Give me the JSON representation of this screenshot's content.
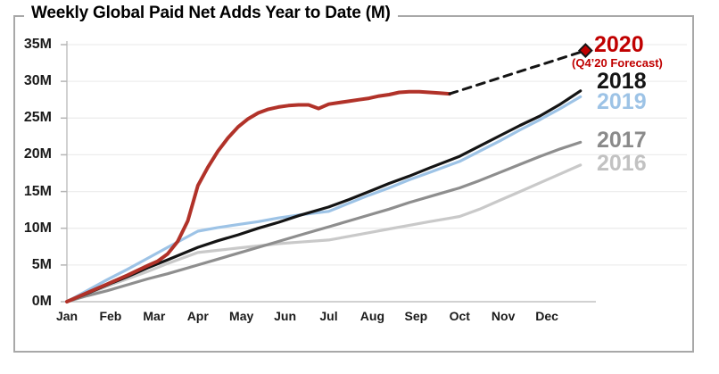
{
  "figure": {
    "title": "Weekly Global Paid Net Adds Year to Date (M)",
    "border_color": "#A8A8A8",
    "background": "#FFFFFF"
  },
  "chart_data": {
    "type": "line",
    "title": "Weekly Global Paid Net Adds Year to Date (M)",
    "x_unit": "weeks of the year (cumulative year-to-date, Jan through Dec)",
    "x_tick_labels": [
      "Jan",
      "Feb",
      "Mar",
      "Apr",
      "May",
      "Jun",
      "Jul",
      "Aug",
      "Sep",
      "Oct",
      "Nov",
      "Dec"
    ],
    "y_ticks": [
      0,
      5,
      10,
      15,
      20,
      25,
      30,
      35
    ],
    "y_tick_labels": [
      "0M",
      "5M",
      "10M",
      "15M",
      "20M",
      "25M",
      "30M",
      "35M"
    ],
    "ylim": [
      0,
      35
    ],
    "xlim_weeks": [
      0,
      52
    ],
    "grid": "horizontal-light",
    "legend_position": "right-end-of-line-labels",
    "series": [
      {
        "name": "2016",
        "style": "solid",
        "color": "#C9C9C9",
        "width": 3.2,
        "points": [
          [
            0,
            0
          ],
          [
            2,
            1.0
          ],
          [
            4,
            2.1
          ],
          [
            6,
            3.1
          ],
          [
            8,
            4.1
          ],
          [
            10,
            5.2
          ],
          [
            11,
            5.7
          ],
          [
            13,
            6.7
          ],
          [
            15,
            7.0
          ],
          [
            17,
            7.3
          ],
          [
            19,
            7.6
          ],
          [
            21,
            7.9
          ],
          [
            23,
            8.1
          ],
          [
            26,
            8.4
          ],
          [
            28,
            8.9
          ],
          [
            30,
            9.4
          ],
          [
            32,
            9.9
          ],
          [
            34,
            10.4
          ],
          [
            36,
            10.9
          ],
          [
            39,
            11.6
          ],
          [
            41,
            12.6
          ],
          [
            43,
            13.8
          ],
          [
            45,
            15.0
          ],
          [
            47,
            16.2
          ],
          [
            49,
            17.4
          ],
          [
            51,
            18.6
          ]
        ]
      },
      {
        "name": "2017",
        "style": "solid",
        "color": "#8E8E8E",
        "width": 3.2,
        "points": [
          [
            0,
            0
          ],
          [
            2,
            0.8
          ],
          [
            4,
            1.5
          ],
          [
            6,
            2.3
          ],
          [
            8,
            3.1
          ],
          [
            10,
            3.8
          ],
          [
            13,
            5.0
          ],
          [
            15,
            5.8
          ],
          [
            17,
            6.6
          ],
          [
            19,
            7.4
          ],
          [
            21,
            8.2
          ],
          [
            23,
            9.0
          ],
          [
            26,
            10.2
          ],
          [
            28,
            11.0
          ],
          [
            30,
            11.8
          ],
          [
            32,
            12.6
          ],
          [
            34,
            13.5
          ],
          [
            36,
            14.3
          ],
          [
            39,
            15.5
          ],
          [
            41,
            16.5
          ],
          [
            43,
            17.6
          ],
          [
            45,
            18.7
          ],
          [
            47,
            19.8
          ],
          [
            49,
            20.8
          ],
          [
            51,
            21.7
          ]
        ]
      },
      {
        "name": "2019",
        "style": "solid",
        "color": "#9DC3E6",
        "width": 3.2,
        "points": [
          [
            0,
            0
          ],
          [
            2,
            1.5
          ],
          [
            4,
            3.0
          ],
          [
            6,
            4.4
          ],
          [
            8,
            5.9
          ],
          [
            10,
            7.4
          ],
          [
            13,
            9.6
          ],
          [
            15,
            10.1
          ],
          [
            17,
            10.5
          ],
          [
            19,
            10.9
          ],
          [
            21,
            11.4
          ],
          [
            23,
            11.8
          ],
          [
            26,
            12.3
          ],
          [
            28,
            13.4
          ],
          [
            30,
            14.5
          ],
          [
            32,
            15.5
          ],
          [
            34,
            16.6
          ],
          [
            36,
            17.6
          ],
          [
            39,
            19.1
          ],
          [
            41,
            20.5
          ],
          [
            43,
            21.9
          ],
          [
            45,
            23.4
          ],
          [
            47,
            24.8
          ],
          [
            49,
            26.3
          ],
          [
            51,
            27.9
          ]
        ]
      },
      {
        "name": "2018",
        "style": "solid",
        "color": "#141414",
        "width": 3.2,
        "points": [
          [
            0,
            0
          ],
          [
            2,
            1.1
          ],
          [
            4,
            2.3
          ],
          [
            6,
            3.4
          ],
          [
            8,
            4.6
          ],
          [
            10,
            5.7
          ],
          [
            13,
            7.4
          ],
          [
            15,
            8.3
          ],
          [
            17,
            9.1
          ],
          [
            19,
            10.0
          ],
          [
            21,
            10.8
          ],
          [
            23,
            11.7
          ],
          [
            26,
            12.9
          ],
          [
            28,
            13.9
          ],
          [
            30,
            15.0
          ],
          [
            32,
            16.1
          ],
          [
            34,
            17.1
          ],
          [
            36,
            18.2
          ],
          [
            39,
            19.8
          ],
          [
            41,
            21.2
          ],
          [
            43,
            22.6
          ],
          [
            45,
            24.0
          ],
          [
            47,
            25.3
          ],
          [
            49,
            26.9
          ],
          [
            51,
            28.7
          ]
        ]
      },
      {
        "name": "2020",
        "style": "solid",
        "color": "#B13229",
        "width": 4,
        "points": [
          [
            0,
            0
          ],
          [
            2,
            1.2
          ],
          [
            4,
            2.4
          ],
          [
            6,
            3.6
          ],
          [
            8,
            4.9
          ],
          [
            9,
            5.5
          ],
          [
            10,
            6.5
          ],
          [
            11,
            8.2
          ],
          [
            12,
            11.0
          ],
          [
            13,
            15.8
          ],
          [
            14,
            18.3
          ],
          [
            15,
            20.5
          ],
          [
            16,
            22.3
          ],
          [
            17,
            23.8
          ],
          [
            18,
            24.9
          ],
          [
            19,
            25.7
          ],
          [
            20,
            26.2
          ],
          [
            21,
            26.5
          ],
          [
            22,
            26.7
          ],
          [
            23,
            26.8
          ],
          [
            24,
            26.8
          ],
          [
            25,
            26.3
          ],
          [
            26,
            26.9
          ],
          [
            27,
            27.1
          ],
          [
            28,
            27.3
          ],
          [
            29,
            27.5
          ],
          [
            30,
            27.7
          ],
          [
            31,
            28.0
          ],
          [
            32,
            28.2
          ],
          [
            33,
            28.5
          ],
          [
            34,
            28.6
          ],
          [
            35,
            28.6
          ],
          [
            36,
            28.5
          ],
          [
            37,
            28.4
          ],
          [
            38,
            28.3
          ]
        ]
      },
      {
        "name": "2020 Q4 forecast",
        "style": "dashed",
        "color": "#141414",
        "width": 3,
        "points": [
          [
            38,
            28.3
          ],
          [
            51.5,
            34.2
          ]
        ],
        "marker": {
          "shape": "diamond",
          "fill": "#C00000",
          "stroke": "#141414",
          "at": [
            51.5,
            34.2
          ]
        }
      }
    ],
    "annotations": [
      {
        "text": "2020",
        "color": "#C00000"
      },
      {
        "text": "(Q4’20 Forecast)",
        "color": "#C00000"
      },
      {
        "text": "2018",
        "color": "#141414"
      },
      {
        "text": "2019",
        "color": "#9DC3E6"
      },
      {
        "text": "2017",
        "color": "#8A8A8A"
      },
      {
        "text": "2016",
        "color": "#C2C2C2"
      }
    ]
  }
}
